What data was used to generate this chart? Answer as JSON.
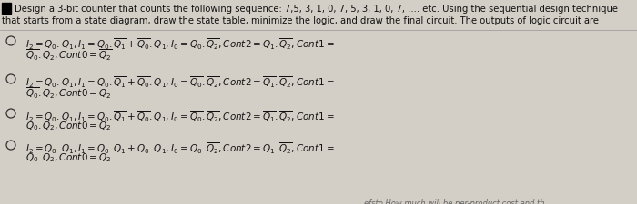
{
  "bg_color": "#d3cfc7",
  "text_color": "#111111",
  "title_line1": "Design a 3-bit counter that counts the following sequence: 7,5, 3, 1, 0, 7, 5, 3, 1, 0, 7, .... etc. Using the sequential design technique",
  "title_line2": "that starts from a state diagram, draw the state table, minimize the logic, and draw the final circuit. The outputs of logic circuit are",
  "options_l1": [
    "$I_2 = Q_0.Q_1, I_1 = Q_0.\\overline{Q_1} + \\overline{Q_0}.Q_1, I_0 = Q_0.\\overline{Q_2}, Cont2 = Q_1.\\overline{Q_2}, Cont1 =$",
    "$I_2 = Q_0.Q_1, I_1 = Q_0.\\overline{Q_1} + \\overline{Q_0}.Q_1, I_0 = \\overline{Q_0}.\\overline{Q_2}, Cont2 = \\overline{Q_1}.\\overline{Q_2}, Cont1 =$",
    "$I_2 = Q_0.Q_1, I_1 = Q_0.\\overline{Q_1} + \\overline{Q_0}.Q_1, I_0 = \\overline{Q_0}.\\overline{Q_2}, Cont2 = \\overline{Q_1}.\\overline{Q_2}, Cont1 =$",
    "$I_2 = Q_0.Q_1, I_1 = Q_0.Q_1 + Q_0.Q_1, I_0 = Q_0.\\overline{Q_2}, Cont2 = Q_1.\\overline{Q_2}, Cont1 =$"
  ],
  "options_l2": [
    "$\\overline{Q_0}.Q_2, Cont0 = \\overline{Q_2}$",
    "$\\overline{Q_0}.Q_2, Cont0 = Q_2$",
    "$Q_0.Q_2, Cont0 = Q_2$",
    "$Q_0.Q_2, Cont0 = Q_2$"
  ],
  "footer": "efsto How much will be per-product cost and th"
}
